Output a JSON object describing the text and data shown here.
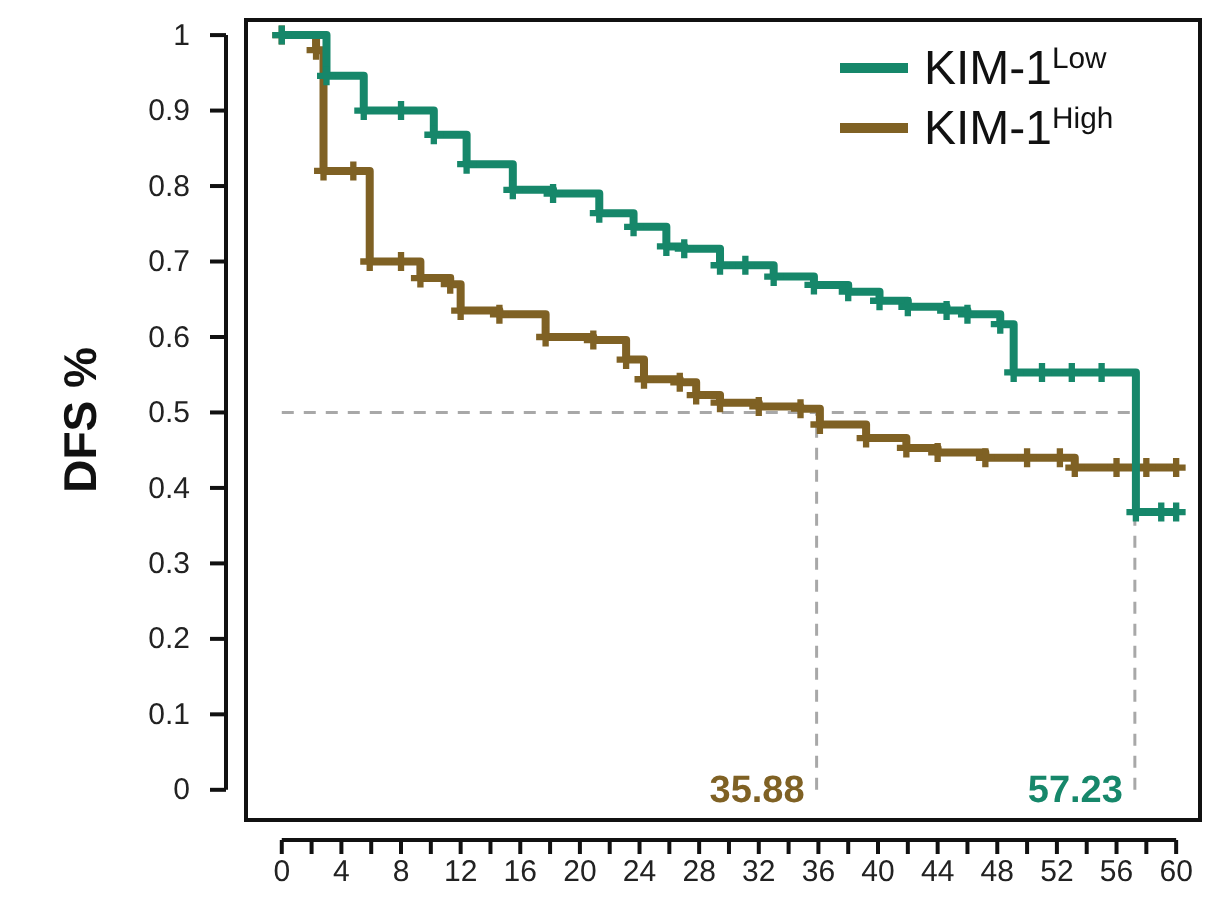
{
  "chart_data": {
    "type": "step",
    "ylabel": "DFS %",
    "xlim": [
      -2.4,
      61.6
    ],
    "ylim": [
      -0.04,
      1.02
    ],
    "xticks": [
      0,
      {
        "value": 2,
        "label": null
      },
      4,
      {
        "value": 6,
        "label": null
      },
      8,
      {
        "value": 10,
        "label": null
      },
      12,
      {
        "value": 14,
        "label": null
      },
      16,
      {
        "value": 18,
        "label": null
      },
      20,
      {
        "value": 22,
        "label": null
      },
      24,
      {
        "value": 26,
        "label": null
      },
      28,
      {
        "value": 30,
        "label": null
      },
      32,
      {
        "value": 34,
        "label": null
      },
      36,
      {
        "value": 38,
        "label": null
      },
      40,
      {
        "value": 42,
        "label": null
      },
      44,
      {
        "value": 46,
        "label": null
      },
      48,
      {
        "value": 50,
        "label": null
      },
      52,
      {
        "value": 54,
        "label": null
      },
      56,
      {
        "value": 58,
        "label": null
      },
      60
    ],
    "yticks": [
      0,
      0.1,
      0.2,
      0.3,
      0.4,
      0.5,
      0.6,
      0.7,
      0.8,
      0.9,
      1
    ],
    "grid": false,
    "legend": "top right",
    "marker": "cross",
    "line_style": "solid",
    "series": [
      {
        "name": "KIM-1$^{Low}$",
        "color": "#16876a",
        "x": [
          0,
          3,
          5.5,
          8,
          10.2,
          12.4,
          15.5,
          18.2,
          21.3,
          23.6,
          25.8,
          27,
          29.4,
          31.1,
          33,
          35.7,
          38,
          40.1,
          42,
          44.6,
          46,
          48.2,
          49.1,
          51,
          53,
          55,
          57.3,
          59,
          60
        ],
        "values": [
          1,
          0.946,
          0.9,
          0.9,
          0.868,
          0.829,
          0.795,
          0.79,
          0.764,
          0.746,
          0.72,
          0.717,
          0.695,
          0.695,
          0.68,
          0.669,
          0.66,
          0.648,
          0.64,
          0.635,
          0.63,
          0.617,
          0.553,
          0.553,
          0.553,
          0.553,
          0.368,
          0.368,
          0.368
        ]
      },
      {
        "name": "KIM-1$^{High}$",
        "color": "#7f6124",
        "x": [
          0,
          2.3,
          2.8,
          4.8,
          5.9,
          8,
          9.3,
          11.3,
          12,
          14.6,
          17.7,
          20.9,
          23.1,
          24.3,
          26.7,
          27.8,
          29.4,
          32,
          34.8,
          36.1,
          39.2,
          41.9,
          44,
          47.2,
          50,
          52.2,
          53.2,
          56,
          58,
          60
        ],
        "values": [
          1,
          0.98,
          0.82,
          0.82,
          0.7,
          0.7,
          0.678,
          0.67,
          0.635,
          0.63,
          0.6,
          0.596,
          0.57,
          0.544,
          0.54,
          0.523,
          0.513,
          0.508,
          0.505,
          0.484,
          0.466,
          0.453,
          0.447,
          0.44,
          0.44,
          0.44,
          0.427,
          0.427,
          0.427,
          0.427
        ]
      }
    ],
    "ref_lines": [
      {
        "axis": "y",
        "value": 0.5,
        "color": "#a8a8a8",
        "line_style": "dashed"
      },
      {
        "axis": "x",
        "value": 57.23,
        "label": "57.23",
        "color": "#a8a8a8",
        "line_style": "dashed"
      },
      {
        "axis": "x",
        "value": 35.88,
        "label": "35.88",
        "color": "#a8a8a8",
        "line_style": "dashed"
      }
    ]
  }
}
